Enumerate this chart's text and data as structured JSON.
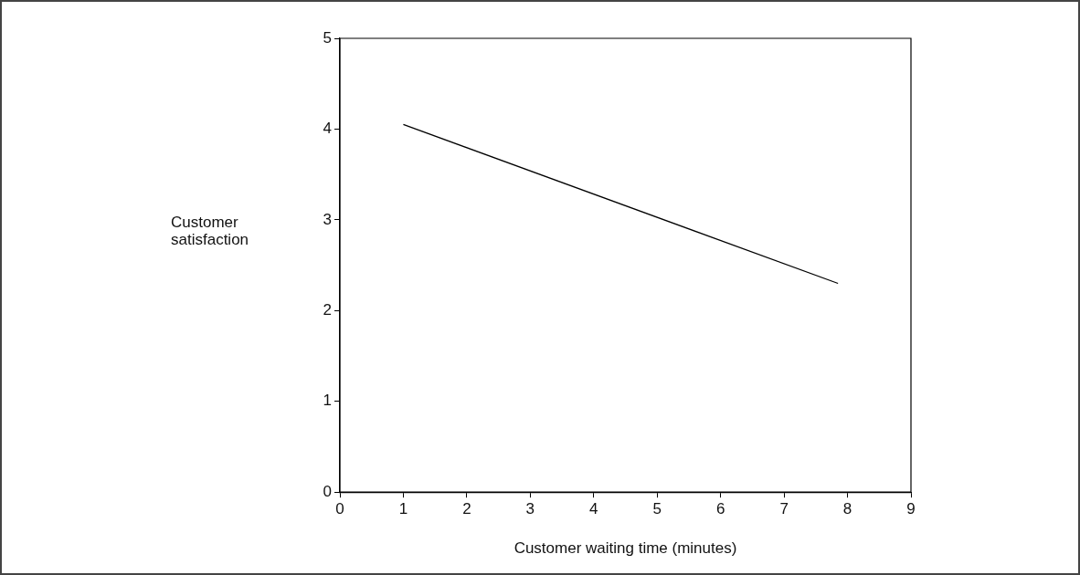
{
  "chart_data": {
    "type": "line",
    "xlabel": "Customer waiting time (minutes)",
    "ylabel": "Customer satisfaction",
    "series": [
      {
        "color": "#000000",
        "x": [
          1,
          7.85
        ],
        "values": [
          4.05,
          2.3
        ]
      }
    ],
    "xlim": [
      0,
      9
    ],
    "xticks": [
      0,
      1,
      2,
      3,
      4,
      5,
      6,
      7,
      8,
      9
    ],
    "ylim": [
      0,
      5
    ],
    "yticks": [
      0,
      1,
      2,
      3,
      4,
      5
    ],
    "grid": false,
    "legend": false,
    "marker": "none",
    "line_style": "solid"
  }
}
